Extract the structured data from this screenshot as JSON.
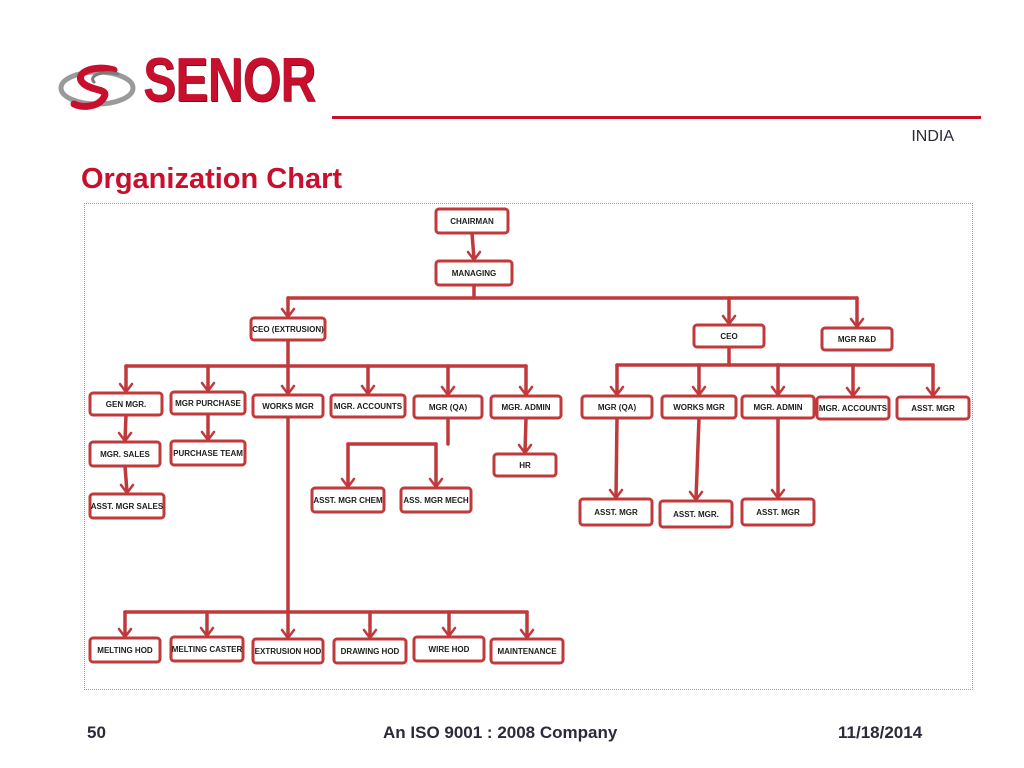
{
  "header": {
    "brand": "SENOR",
    "country": "INDIA",
    "logo_icon": "senor-swoosh-logo-icon",
    "brand_color": "#c8102e"
  },
  "slide": {
    "title": "Organization Chart"
  },
  "footer": {
    "page_number": "50",
    "tagline": "An ISO 9001 : 2008 Company",
    "date": "11/18/2014"
  },
  "org_chart": {
    "box_border_color": "#c0393b",
    "nodes": [
      {
        "id": "chairman",
        "label": "CHAIRMAN"
      },
      {
        "id": "managing",
        "label": "MANAGING"
      },
      {
        "id": "ceo_ext",
        "label": "CEO (EXTRUSION)"
      },
      {
        "id": "ceo",
        "label": "CEO"
      },
      {
        "id": "mgr_rd",
        "label": "MGR R&D"
      },
      {
        "id": "gen_mgr",
        "label": "GEN MGR."
      },
      {
        "id": "mgr_purchase",
        "label": "MGR PURCHASE"
      },
      {
        "id": "works_mgr_1",
        "label": "WORKS MGR"
      },
      {
        "id": "mgr_accounts_1",
        "label": "MGR.  ACCOUNTS"
      },
      {
        "id": "mgr_qa_1",
        "label": "MGR (QA)"
      },
      {
        "id": "mgr_admin_1",
        "label": "MGR. ADMIN"
      },
      {
        "id": "mgr_sales",
        "label": "MGR. SALES"
      },
      {
        "id": "purchase_team",
        "label": "PURCHASE TEAM"
      },
      {
        "id": "asst_mgr_sales",
        "label": "ASST. MGR SALES"
      },
      {
        "id": "hr",
        "label": "HR"
      },
      {
        "id": "asst_mgr_chem",
        "label": "ASST. MGR CHEM"
      },
      {
        "id": "ass_mgr_mech",
        "label": "ASS. MGR MECH"
      },
      {
        "id": "melting_hod",
        "label": "MELTING  HOD"
      },
      {
        "id": "melting_caster",
        "label": "MELTING CASTER"
      },
      {
        "id": "extrusion_hod",
        "label": "EXTRUSION HOD"
      },
      {
        "id": "drawing_hod",
        "label": "DRAWING HOD"
      },
      {
        "id": "wire_hod",
        "label": "WIRE HOD"
      },
      {
        "id": "maintenance",
        "label": "MAINTENANCE"
      },
      {
        "id": "mgr_qa_2",
        "label": "MGR (QA)"
      },
      {
        "id": "works_mgr_2",
        "label": "WORKS MGR"
      },
      {
        "id": "mgr_admin_2",
        "label": "MGR. ADMIN"
      },
      {
        "id": "mgr_accounts_2",
        "label": "MGR. ACCOUNTS"
      },
      {
        "id": "asst_mgr_1",
        "label": "ASST. MGR"
      },
      {
        "id": "asst_mgr_2",
        "label": "ASST. MGR"
      },
      {
        "id": "asst_mgr_3",
        "label": "ASST. MGR."
      },
      {
        "id": "asst_mgr_4",
        "label": "ASST. MGR"
      }
    ],
    "edges": [
      [
        "chairman",
        "managing"
      ],
      [
        "managing",
        "ceo_ext"
      ],
      [
        "managing",
        "ceo"
      ],
      [
        "managing",
        "mgr_rd"
      ],
      [
        "ceo_ext",
        "gen_mgr"
      ],
      [
        "ceo_ext",
        "mgr_purchase"
      ],
      [
        "ceo_ext",
        "works_mgr_1"
      ],
      [
        "ceo_ext",
        "mgr_accounts_1"
      ],
      [
        "ceo_ext",
        "mgr_qa_1"
      ],
      [
        "ceo_ext",
        "mgr_admin_1"
      ],
      [
        "gen_mgr",
        "mgr_sales"
      ],
      [
        "mgr_sales",
        "asst_mgr_sales"
      ],
      [
        "mgr_purchase",
        "purchase_team"
      ],
      [
        "mgr_admin_1",
        "hr"
      ],
      [
        "mgr_qa_1",
        "asst_mgr_chem"
      ],
      [
        "mgr_qa_1",
        "ass_mgr_mech"
      ],
      [
        "works_mgr_1",
        "melting_hod"
      ],
      [
        "works_mgr_1",
        "melting_caster"
      ],
      [
        "works_mgr_1",
        "extrusion_hod"
      ],
      [
        "works_mgr_1",
        "drawing_hod"
      ],
      [
        "works_mgr_1",
        "wire_hod"
      ],
      [
        "works_mgr_1",
        "maintenance"
      ],
      [
        "ceo",
        "mgr_qa_2"
      ],
      [
        "ceo",
        "works_mgr_2"
      ],
      [
        "ceo",
        "mgr_admin_2"
      ],
      [
        "ceo",
        "mgr_accounts_2"
      ],
      [
        "ceo",
        "asst_mgr_1"
      ],
      [
        "mgr_qa_2",
        "asst_mgr_2"
      ],
      [
        "works_mgr_2",
        "asst_mgr_3"
      ],
      [
        "mgr_admin_2",
        "asst_mgr_4"
      ]
    ]
  }
}
